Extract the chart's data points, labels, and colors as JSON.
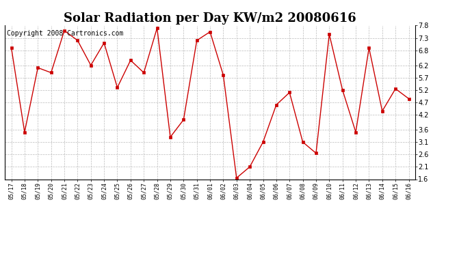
{
  "title": "Solar Radiation per Day KW/m2 20080616",
  "copyright_text": "Copyright 2008 Cartronics.com",
  "dates": [
    "05/17",
    "05/18",
    "05/19",
    "05/20",
    "05/21",
    "05/22",
    "05/23",
    "05/24",
    "05/25",
    "05/26",
    "05/27",
    "05/28",
    "05/29",
    "05/30",
    "05/31",
    "06/01",
    "06/02",
    "06/03",
    "06/04",
    "06/05",
    "06/06",
    "06/07",
    "06/08",
    "06/09",
    "06/10",
    "06/11",
    "06/12",
    "06/13",
    "06/14",
    "06/15",
    "06/16"
  ],
  "values": [
    6.9,
    3.5,
    6.1,
    5.9,
    7.6,
    7.2,
    6.2,
    7.1,
    5.3,
    6.4,
    5.9,
    7.7,
    3.3,
    4.0,
    7.2,
    7.55,
    5.8,
    1.65,
    2.1,
    3.1,
    4.6,
    5.1,
    3.1,
    2.65,
    7.45,
    5.2,
    3.5,
    6.9,
    4.35,
    5.25,
    4.85
  ],
  "line_color": "#cc0000",
  "marker_color": "#cc0000",
  "background_color": "#ffffff",
  "grid_color": "#bbbbbb",
  "ylim": [
    1.6,
    7.8
  ],
  "yticks": [
    1.6,
    2.1,
    2.6,
    3.1,
    3.6,
    4.2,
    4.7,
    5.2,
    5.7,
    6.2,
    6.8,
    7.3,
    7.8
  ],
  "title_fontsize": 13,
  "copyright_fontsize": 7,
  "tick_fontsize": 7,
  "xtick_fontsize": 6
}
